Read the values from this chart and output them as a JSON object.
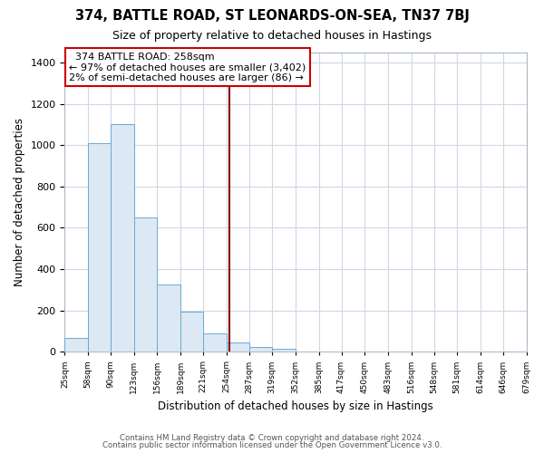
{
  "title": "374, BATTLE ROAD, ST LEONARDS-ON-SEA, TN37 7BJ",
  "subtitle": "Size of property relative to detached houses in Hastings",
  "xlabel": "Distribution of detached houses by size in Hastings",
  "ylabel": "Number of detached properties",
  "bar_color": "#dce8f3",
  "bar_edge_color": "#6aaad4",
  "bin_labels": [
    "25sqm",
    "58sqm",
    "90sqm",
    "123sqm",
    "156sqm",
    "189sqm",
    "221sqm",
    "254sqm",
    "287sqm",
    "319sqm",
    "352sqm",
    "385sqm",
    "417sqm",
    "450sqm",
    "483sqm",
    "516sqm",
    "548sqm",
    "581sqm",
    "614sqm",
    "646sqm",
    "679sqm"
  ],
  "bar_heights": [
    65,
    1010,
    1100,
    650,
    325,
    195,
    90,
    47,
    25,
    15,
    0,
    0,
    0,
    0,
    0,
    0,
    0,
    0,
    0,
    0,
    0
  ],
  "bin_edges": [
    25,
    58,
    90,
    123,
    156,
    189,
    221,
    254,
    287,
    319,
    352,
    385,
    417,
    450,
    483,
    516,
    548,
    581,
    614,
    646,
    679
  ],
  "property_line_x": 258,
  "annotation_title": "374 BATTLE ROAD: 258sqm",
  "annotation_line1": "← 97% of detached houses are smaller (3,402)",
  "annotation_line2": "2% of semi-detached houses are larger (86) →",
  "annotation_box_color": "#ffffff",
  "annotation_border_color": "#cc0000",
  "vline_color": "#8b0000",
  "ylim": [
    0,
    1450
  ],
  "xlim_min": 25,
  "xlim_max": 679,
  "footer_line1": "Contains HM Land Registry data © Crown copyright and database right 2024.",
  "footer_line2": "Contains public sector information licensed under the Open Government Licence v3.0.",
  "background_color": "#ffffff",
  "grid_color": "#d0d8e4"
}
